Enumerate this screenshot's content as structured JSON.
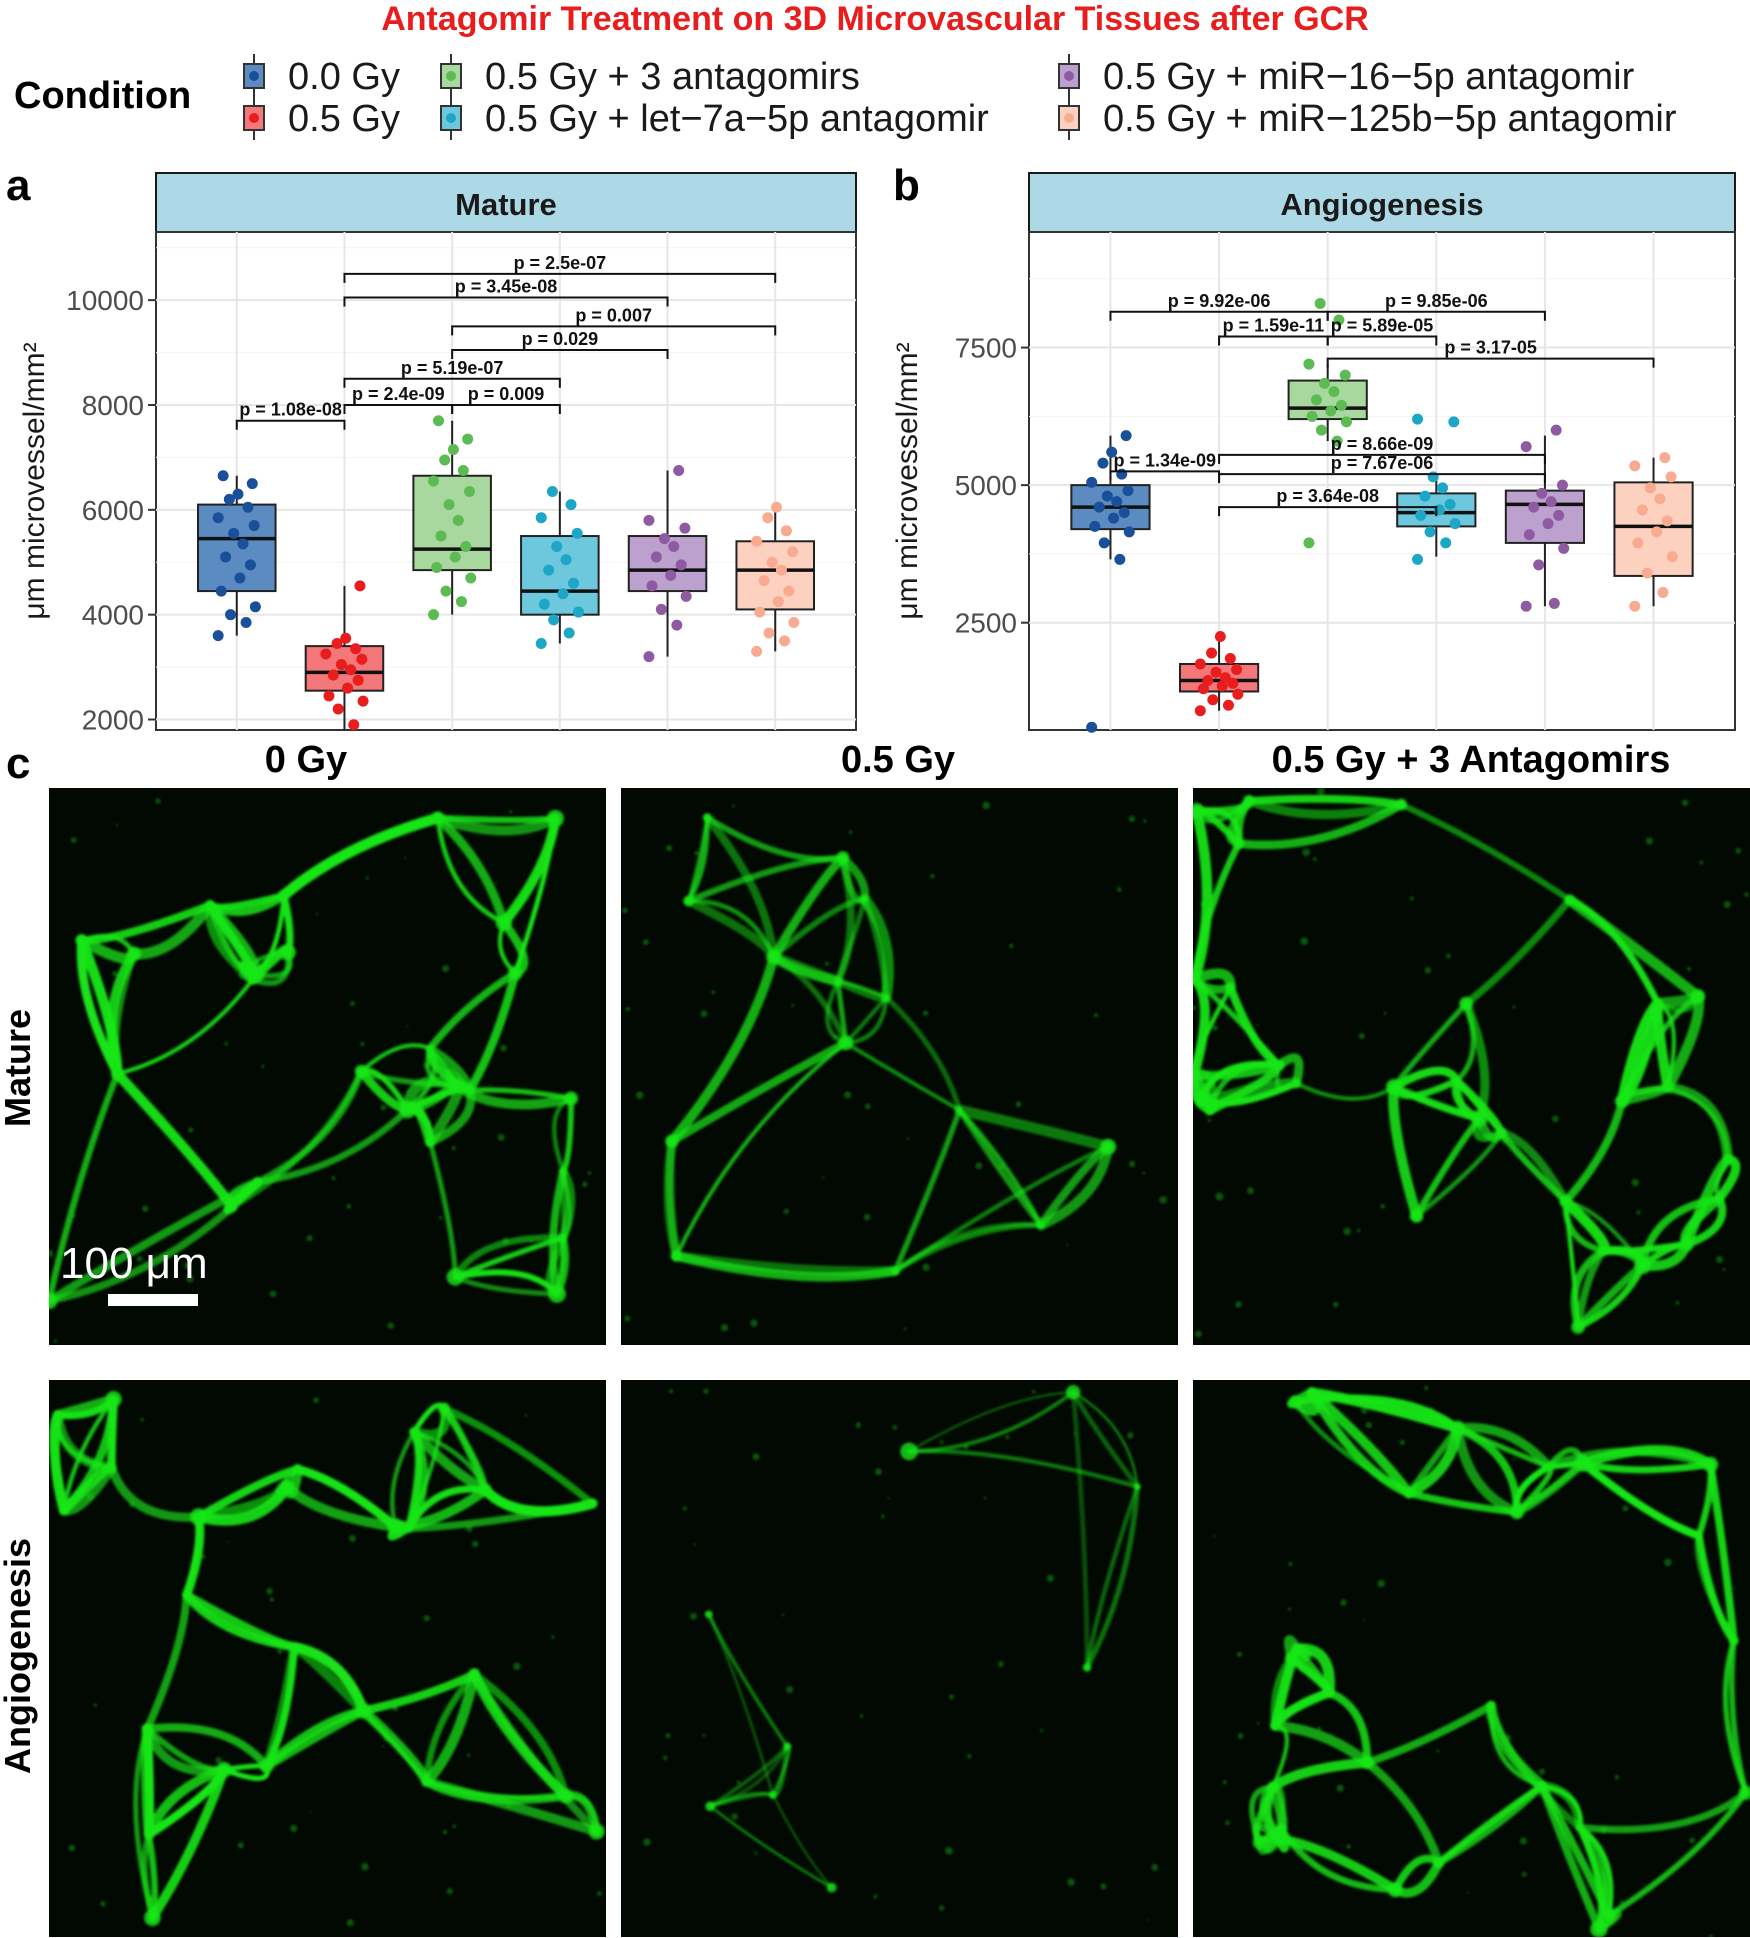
{
  "title": "Antagomir Treatment on 3D Microvascular Tissues after GCR",
  "legend": {
    "title": "Condition",
    "items": [
      {
        "label": "0.0 Gy",
        "fill": "#5b8bc0",
        "dot": "#1a4f9a"
      },
      {
        "label": "0.5 Gy",
        "fill": "#f4777a",
        "dot": "#e81d1d"
      },
      {
        "label": "0.5 Gy + 3 antagomirs",
        "fill": "#a8d89e",
        "dot": "#5cbb52"
      },
      {
        "label": "0.5 Gy + let−7a−5p antagomir",
        "fill": "#6ec8dd",
        "dot": "#1ea6c6"
      },
      {
        "label": "0.5 Gy + miR−16−5p antagomir",
        "fill": "#bca0cd",
        "dot": "#8e5ba3"
      },
      {
        "label": "0.5 Gy + miR−125b−5p antagomir",
        "fill": "#fcd1bf",
        "dot": "#f9ab92"
      }
    ]
  },
  "panel_letters": {
    "a": "a",
    "b": "b",
    "c": "c"
  },
  "chart_data": [
    {
      "type": "box",
      "strip_title": "Mature",
      "ylabel": "μm microvessel/mm²",
      "ylim": [
        1800,
        11300
      ],
      "yticks": [
        2000,
        4000,
        6000,
        8000,
        10000
      ],
      "grid": true,
      "boxes": [
        {
          "group": "0.0 Gy",
          "min": 3600,
          "q1": 4450,
          "median": 5450,
          "q3": 6100,
          "max": 6650,
          "points": [
            3600,
            3850,
            4000,
            4150,
            4450,
            4700,
            4950,
            5100,
            5350,
            5550,
            5700,
            5850,
            6050,
            6200,
            6300,
            6500,
            6650
          ]
        },
        {
          "group": "0.5 Gy",
          "min": 1600,
          "q1": 2550,
          "median": 2900,
          "q3": 3400,
          "max": 4550,
          "points": [
            1600,
            1900,
            2200,
            2350,
            2450,
            2600,
            2750,
            2850,
            2950,
            3050,
            3150,
            3250,
            3350,
            3450,
            3550,
            4550
          ]
        },
        {
          "group": "0.5 Gy + 3 antagomirs",
          "min": 4000,
          "q1": 4850,
          "median": 5250,
          "q3": 6650,
          "max": 7700,
          "points": [
            4000,
            4250,
            4450,
            4700,
            4900,
            5100,
            5300,
            5500,
            5800,
            6100,
            6350,
            6550,
            6750,
            6950,
            7150,
            7350,
            7700
          ]
        },
        {
          "group": "0.5 Gy + let−7a−5p antagomir",
          "min": 3450,
          "q1": 4000,
          "median": 4450,
          "q3": 5500,
          "max": 6350,
          "points": [
            3450,
            3650,
            3900,
            4050,
            4200,
            4400,
            4600,
            4850,
            5050,
            5300,
            5550,
            5850,
            6100,
            6350
          ]
        },
        {
          "group": "0.5 Gy + miR−16−5p antagomir",
          "min": 3200,
          "q1": 4450,
          "median": 4850,
          "q3": 5500,
          "max": 6750,
          "points": [
            3200,
            3800,
            4100,
            4350,
            4550,
            4750,
            4950,
            5100,
            5300,
            5450,
            5650,
            5800,
            6750
          ]
        },
        {
          "group": "0.5 Gy + miR−125b−5p antagomir",
          "min": 3300,
          "q1": 4100,
          "median": 4850,
          "q3": 5400,
          "max": 6050,
          "points": [
            3300,
            3500,
            3650,
            3850,
            4050,
            4250,
            4450,
            4650,
            4850,
            5000,
            5200,
            5400,
            5600,
            5850,
            6050
          ]
        }
      ],
      "comparisons": [
        {
          "from": 0,
          "to": 1,
          "y": 7700,
          "label": "p = 1.08e-08"
        },
        {
          "from": 1,
          "to": 2,
          "y": 8000,
          "label": "p = 2.4e-09"
        },
        {
          "from": 2,
          "to": 3,
          "y": 8000,
          "label": "p = 0.009"
        },
        {
          "from": 1,
          "to": 3,
          "y": 8500,
          "label": "p = 5.19e-07"
        },
        {
          "from": 2,
          "to": 4,
          "y": 9050,
          "label": "p = 0.029"
        },
        {
          "from": 2,
          "to": 5,
          "y": 9500,
          "label": "p = 0.007"
        },
        {
          "from": 1,
          "to": 4,
          "y": 10050,
          "label": "p = 3.45e-08"
        },
        {
          "from": 1,
          "to": 5,
          "y": 10500,
          "label": "p = 2.5e-07"
        }
      ]
    },
    {
      "type": "box",
      "strip_title": "Angiogenesis",
      "ylabel": "μm microvessel/mm²",
      "ylim": [
        550,
        9600
      ],
      "yticks": [
        2500,
        5000,
        7500
      ],
      "grid": true,
      "boxes": [
        {
          "group": "0.0 Gy",
          "min": 3650,
          "q1": 4200,
          "median": 4600,
          "q3": 5000,
          "max": 5900,
          "points": [
            600,
            3650,
            3950,
            4150,
            4250,
            4400,
            4500,
            4600,
            4700,
            4800,
            4900,
            5050,
            5200,
            5400,
            5600,
            5900
          ]
        },
        {
          "group": "0.5 Gy",
          "min": 900,
          "q1": 1250,
          "median": 1450,
          "q3": 1750,
          "max": 2250,
          "points": [
            900,
            1000,
            1100,
            1200,
            1300,
            1350,
            1400,
            1450,
            1500,
            1600,
            1650,
            1750,
            1850,
            1950,
            2250
          ]
        },
        {
          "group": "0.5 Gy + 3 antagomirs",
          "min": 5800,
          "q1": 6200,
          "median": 6400,
          "q3": 6900,
          "max": 7200,
          "points": [
            3950,
            5800,
            6000,
            6150,
            6250,
            6350,
            6450,
            6550,
            6700,
            6850,
            7000,
            7200,
            8000,
            8300
          ]
        },
        {
          "group": "0.5 Gy + let−7a−5p antagomir",
          "min": 3700,
          "q1": 4250,
          "median": 4500,
          "q3": 4850,
          "max": 5150,
          "points": [
            3650,
            3950,
            4150,
            4300,
            4450,
            4550,
            4650,
            4800,
            4950,
            5150,
            6150,
            6200
          ]
        },
        {
          "group": "0.5 Gy + miR−16−5p antagomir",
          "min": 2800,
          "q1": 3950,
          "median": 4650,
          "q3": 4900,
          "max": 5900,
          "points": [
            2800,
            2850,
            3550,
            3850,
            4100,
            4300,
            4450,
            4600,
            4700,
            4850,
            5000,
            5700,
            6000
          ]
        },
        {
          "group": "0.5 Gy + miR−125b−5p antagomir",
          "min": 2800,
          "q1": 3350,
          "median": 4250,
          "q3": 5050,
          "max": 5500,
          "points": [
            2800,
            3050,
            3400,
            3700,
            3950,
            4150,
            4350,
            4550,
            4750,
            4950,
            5150,
            5350,
            5500
          ]
        }
      ],
      "comparisons": [
        {
          "from": 0,
          "to": 1,
          "y": 5250,
          "label": "p = 1.34e-09"
        },
        {
          "from": 1,
          "to": 4,
          "y": 5550,
          "label": "p = 8.66e-09"
        },
        {
          "from": 1,
          "to": 4,
          "y": 5200,
          "label": "p = 7.67e-06"
        },
        {
          "from": 1,
          "to": 3,
          "y": 4600,
          "label": "p = 3.64e-08"
        },
        {
          "from": 0,
          "to": 2,
          "y": 8150,
          "label": "p = 9.92e-06"
        },
        {
          "from": 1,
          "to": 2,
          "y": 7700,
          "label": "p = 1.59e-11"
        },
        {
          "from": 2,
          "to": 4,
          "y": 8150,
          "label": "p = 9.85e-06"
        },
        {
          "from": 2,
          "to": 3,
          "y": 7700,
          "label": "p = 5.89e-05"
        },
        {
          "from": 2,
          "to": 5,
          "y": 7300,
          "label": "p = 3.17-05"
        }
      ]
    }
  ],
  "images": {
    "col_labels": [
      "0 Gy",
      "0.5 Gy",
      "0.5 Gy + 3 Antagomirs"
    ],
    "row_labels": [
      "Mature",
      "Angiogenesis"
    ],
    "scale_bar": "100 μm",
    "vessel_color": "#19e619",
    "density": [
      [
        1.0,
        0.55,
        1.1
      ],
      [
        0.95,
        0.35,
        1.05
      ]
    ]
  }
}
